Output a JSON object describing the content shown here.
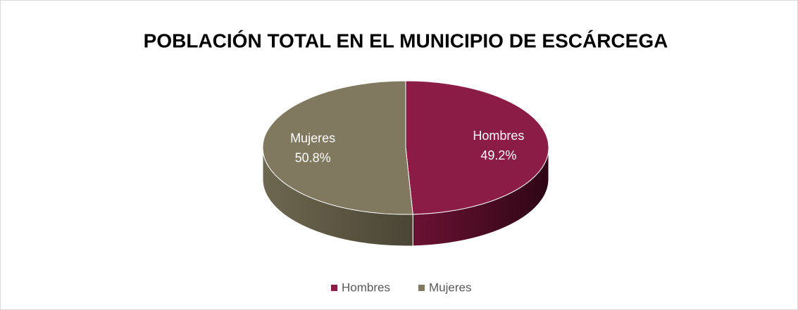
{
  "chart_data": {
    "type": "pie3d",
    "title": "POBLACIÓN TOTAL EN EL MUNICIPIO DE ESCÁRCEGA",
    "categories": [
      "Hombres",
      "Mujeres"
    ],
    "values": [
      49.2,
      50.8
    ],
    "value_labels": [
      "49.2%",
      "50.8%"
    ],
    "colors": [
      "#8b1c45",
      "#80785f"
    ],
    "legend": "bottom"
  }
}
